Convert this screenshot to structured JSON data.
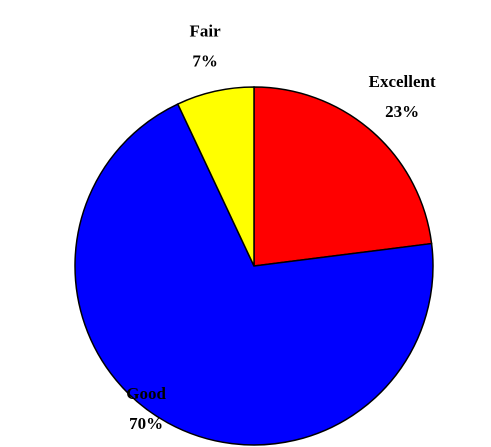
{
  "chart_data": {
    "type": "pie",
    "categories": [
      "Excellent",
      "Good",
      "Fair"
    ],
    "values": [
      23,
      70,
      7
    ],
    "value_labels": [
      "23%",
      "70%",
      "7%"
    ],
    "colors": [
      "#ff0000",
      "#0000ff",
      "#ffff00"
    ]
  }
}
